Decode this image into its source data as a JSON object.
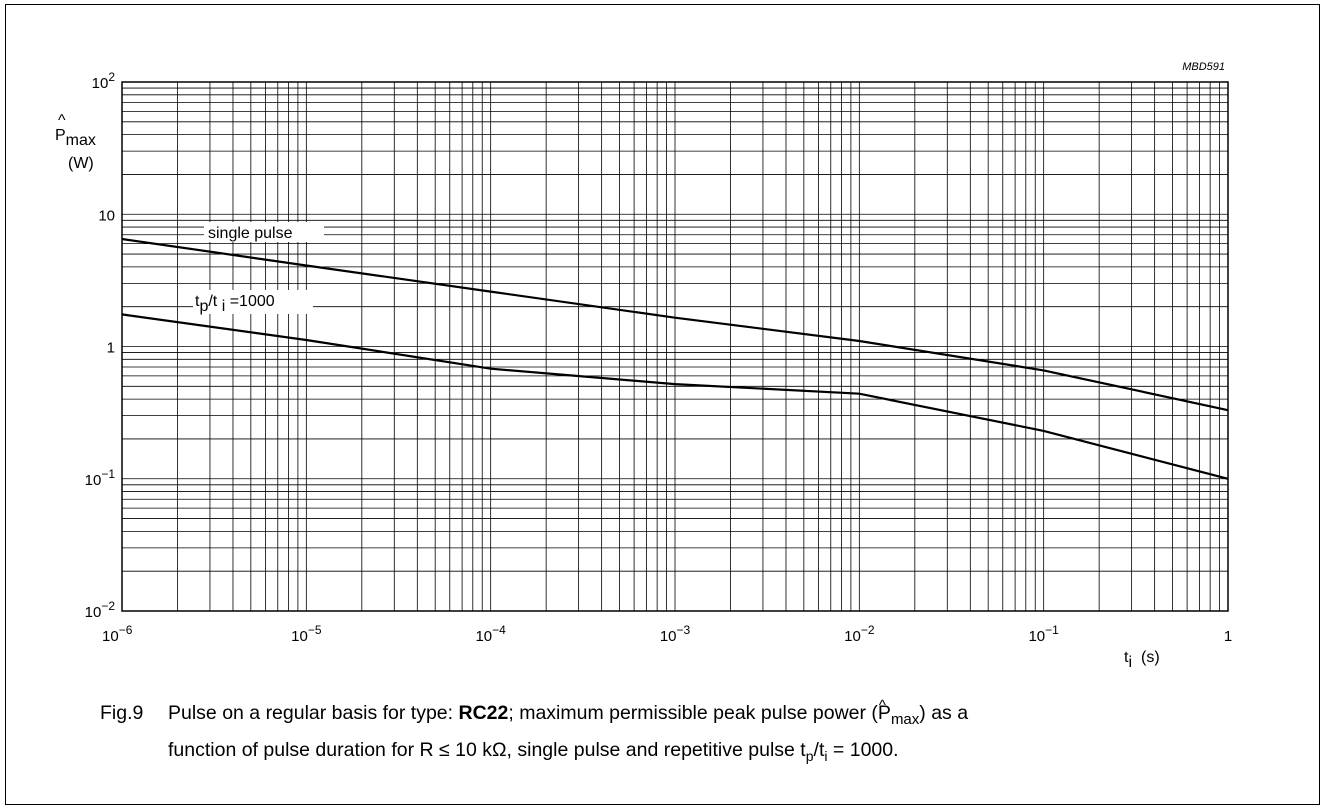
{
  "figure_code": "MBD591",
  "y_axis": {
    "symbol": "P",
    "subscript": "max",
    "unit": "(W)"
  },
  "x_axis": {
    "symbol": "t",
    "subscript": "i",
    "unit": "(s)"
  },
  "y_tick_labels": [
    {
      "base": "10",
      "exp": "2"
    },
    {
      "base": "10",
      "exp": ""
    },
    {
      "base": "1",
      "exp": ""
    },
    {
      "base": "10",
      "exp": "−1"
    },
    {
      "base": "10",
      "exp": "−2"
    }
  ],
  "x_tick_labels": [
    {
      "base": "10",
      "exp": "−6"
    },
    {
      "base": "10",
      "exp": "−5"
    },
    {
      "base": "10",
      "exp": "−4"
    },
    {
      "base": "10",
      "exp": "−3"
    },
    {
      "base": "10",
      "exp": "−2"
    },
    {
      "base": "10",
      "exp": "−1"
    },
    {
      "base": "1",
      "exp": ""
    }
  ],
  "chart_data": {
    "type": "line",
    "xscale": "log",
    "yscale": "log",
    "xlim": [
      1e-06,
      1
    ],
    "ylim": [
      0.01,
      100
    ],
    "grid": true,
    "series": [
      {
        "name": "single pulse",
        "x": [
          1e-06,
          1e-05,
          0.0001,
          0.001,
          0.01,
          0.1,
          1
        ],
        "y": [
          6.5,
          4.1,
          2.6,
          1.65,
          1.1,
          0.66,
          0.33
        ]
      },
      {
        "name": "tp/ti =1000",
        "x": [
          1e-06,
          1e-05,
          0.0001,
          0.001,
          0.01,
          0.1,
          1
        ],
        "y": [
          1.75,
          1.12,
          0.68,
          0.52,
          0.44,
          0.23,
          0.1
        ]
      }
    ]
  },
  "caption": {
    "fig_label": "Fig.9",
    "line1_part1": "Pulse on a regular basis for type: ",
    "line1_bold": "RC22",
    "line1_part2": "; maximum permissible peak pulse power (",
    "line1_symbol": "P",
    "line1_sub": "max",
    "line1_part3": ") as a",
    "line2_part1": "function of pulse duration for R ≤ 10 kΩ, single pulse and repetitive pulse t",
    "line2_sub1": "p",
    "line2_slash": "/t",
    "line2_sub2": "i",
    "line2_part2": " = 1000."
  }
}
